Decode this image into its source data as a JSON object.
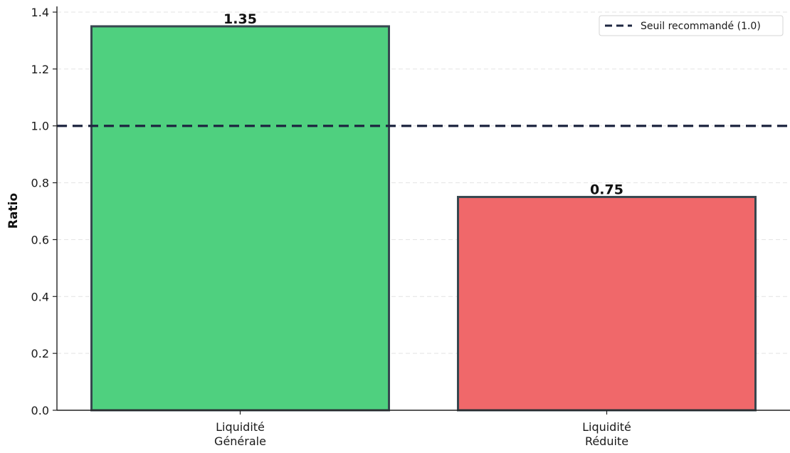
{
  "chart_data": {
    "type": "bar",
    "categories": [
      [
        "Liquidité",
        "Générale"
      ],
      [
        "Liquidité",
        "Réduite"
      ]
    ],
    "values": [
      1.35,
      0.75
    ],
    "value_labels": [
      "1.35",
      "0.75"
    ],
    "bar_colors": [
      "#4fd07f",
      "#f0686a"
    ],
    "bar_edge_color": "#37474f",
    "title": "",
    "xlabel": "",
    "ylabel": "Ratio",
    "ylim": [
      0,
      1.4
    ],
    "yticks": [
      0.0,
      0.2,
      0.4,
      0.6,
      0.8,
      1.0,
      1.2,
      1.4
    ],
    "ytick_labels": [
      "0.0",
      "0.2",
      "0.4",
      "0.6",
      "0.8",
      "1.0",
      "1.2",
      "1.4"
    ],
    "grid": "horizontal dashed",
    "reference_line": {
      "value": 1.0,
      "label": "Seuil recommandé (1.0)",
      "color": "#1e2640",
      "style": "dashed"
    },
    "legend": {
      "placement": "top-right",
      "entries": [
        "Seuil recommandé (1.0)"
      ]
    }
  }
}
